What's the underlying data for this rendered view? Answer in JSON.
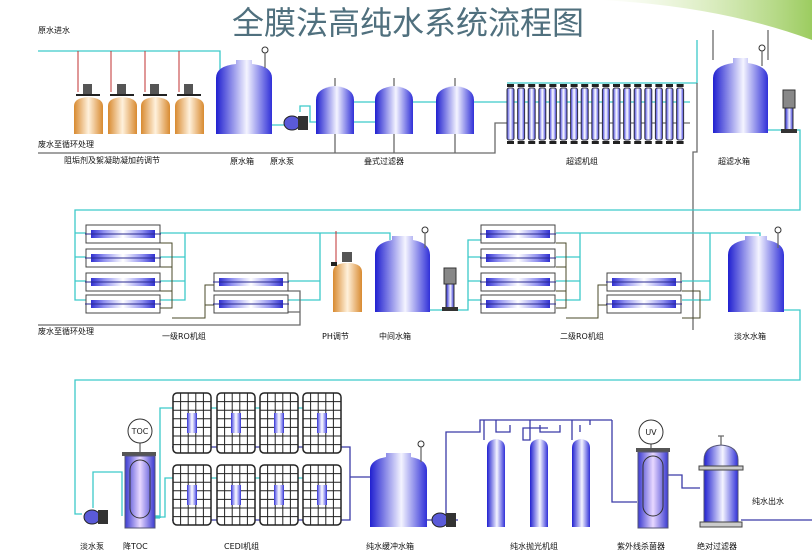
{
  "title": "全膜法高纯水系统流程图",
  "colors": {
    "tank_blue": "#2b2bd8",
    "dosing_orange": "#e0a050",
    "pipe_cyan": "#3cc9c9",
    "pipe_gray": "#6a6a6a",
    "title": "#50707e",
    "swoosh": "#a8d070"
  },
  "row1": {
    "raw_water_in": "原水进水",
    "waste_to_recycle": "废水至循环处理",
    "dosing": "阻垢剂及絮凝助凝加药调节",
    "raw_tank": "原水箱",
    "raw_pump": "原水泵",
    "filter": "叠式过滤器",
    "uf_unit": "超滤机组",
    "uf_tank": "超滤水箱"
  },
  "row2": {
    "waste_to_recycle": "废水至循环处理",
    "ro1": "一级RO机组",
    "ph": "PH调节",
    "mid_tank": "中间水箱",
    "ro2": "二级RO机组",
    "fresh_tank": "淡水水箱"
  },
  "row3": {
    "fresh_pump": "淡水泵",
    "toc": "降TOC",
    "toc_badge": "TOC",
    "cedi": "CEDI机组",
    "buffer_tank": "纯水缓冲水箱",
    "polish": "纯水抛光机组",
    "uv": "紫外线杀菌器",
    "uv_badge": "UV",
    "abs_filter": "绝对过滤器",
    "pure_out": "纯水出水"
  }
}
